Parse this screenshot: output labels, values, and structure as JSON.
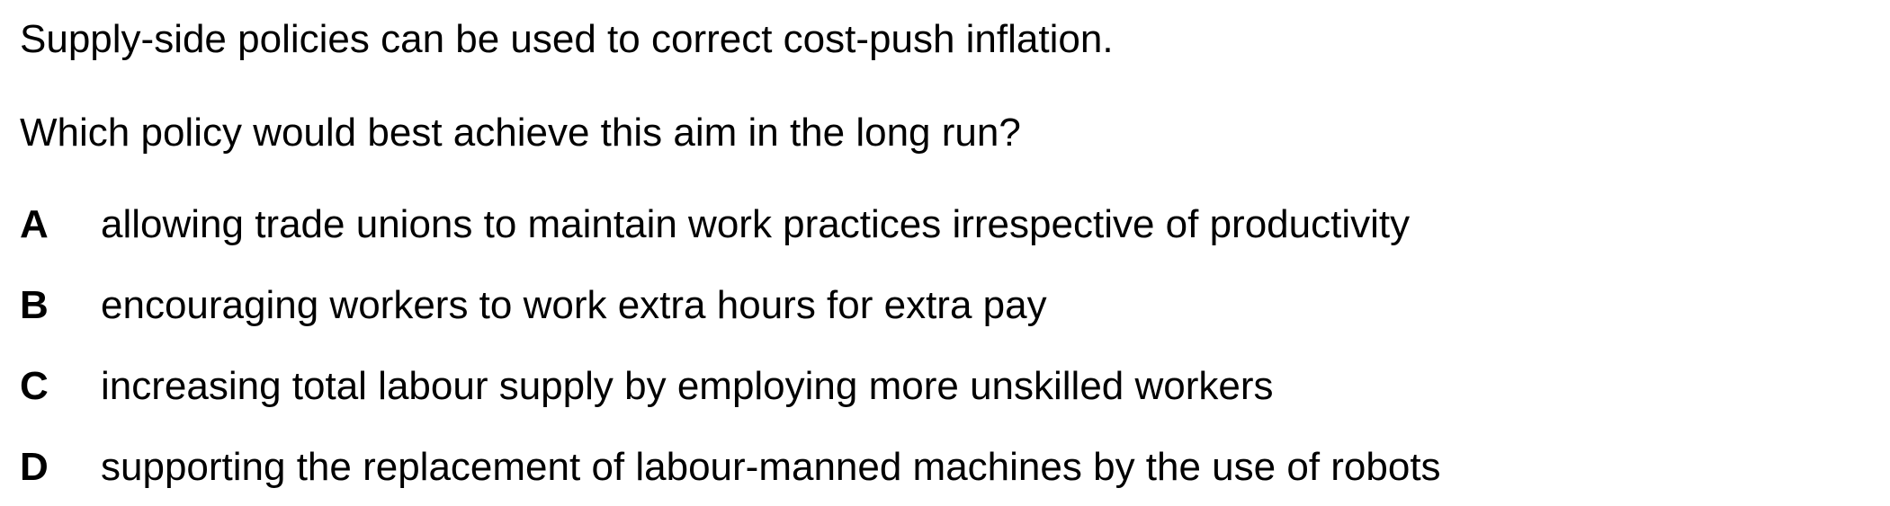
{
  "question": {
    "statement": "Supply-side policies can be used to correct cost-push inflation.",
    "prompt": "Which policy would best achieve this aim in the long run?",
    "options": [
      {
        "letter": "A",
        "text": "allowing trade unions to maintain work practices irrespective of productivity"
      },
      {
        "letter": "B",
        "text": "encouraging workers to work extra hours for extra pay"
      },
      {
        "letter": "C",
        "text": "increasing total labour supply by employing more unskilled workers"
      },
      {
        "letter": "D",
        "text": "supporting the replacement of labour-manned machines by the use of robots"
      }
    ]
  }
}
